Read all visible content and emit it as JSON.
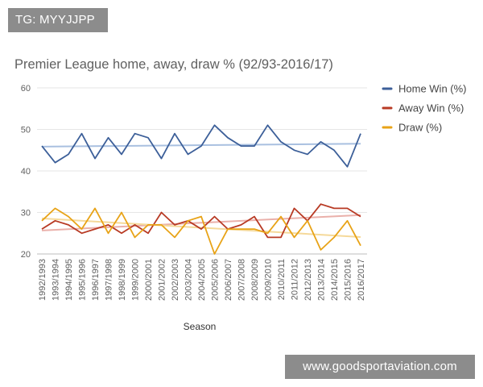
{
  "tag_badge": "TG: MYYJJPP",
  "watermark": "www.goodsportaviation.com",
  "chart_data": {
    "type": "line",
    "title": "Premier League home, away, draw % (92/93-2016/17)",
    "xlabel": "Season",
    "ylabel": "",
    "ylim": [
      20,
      60
    ],
    "yticks": [
      20,
      30,
      40,
      50,
      60
    ],
    "grid": true,
    "legend_position": "right",
    "categories": [
      "1992/1993",
      "1993/1994",
      "1994/1995",
      "1995/1996",
      "1996/1997",
      "1997/1998",
      "1998/1999",
      "1999/2000",
      "2000/2001",
      "2001/2002",
      "2002/2003",
      "2003/2004",
      "2004/2005",
      "2005/2006",
      "2006/2007",
      "2007/2008",
      "2008/2009",
      "2009/2010",
      "2010/2011",
      "2011/2012",
      "2012/2013",
      "2013/2014",
      "2014/2015",
      "2015/2016",
      "2016/2017"
    ],
    "series": [
      {
        "name": "Home Win (%)",
        "color": "#3c5f99",
        "trend_color": "#a9c0e0",
        "values": [
          46,
          42,
          44,
          49,
          43,
          48,
          44,
          49,
          48,
          43,
          49,
          44,
          46,
          51,
          48,
          46,
          46,
          51,
          47,
          45,
          44,
          47,
          45,
          41,
          49
        ]
      },
      {
        "name": "Away Win (%)",
        "color": "#b83a24",
        "trend_color": "#eab0aa",
        "values": [
          26,
          28,
          27,
          25,
          26,
          27,
          25,
          27,
          25,
          30,
          27,
          28,
          26,
          29,
          26,
          27,
          29,
          24,
          24,
          31,
          28,
          32,
          31,
          31,
          29
        ]
      },
      {
        "name": "Draw (%)",
        "color": "#e8a317",
        "trend_color": "#f5d99a",
        "values": [
          28,
          31,
          29,
          26,
          31,
          25,
          30,
          24,
          27,
          27,
          24,
          28,
          29,
          20,
          26,
          26,
          26,
          25,
          29,
          24,
          28,
          21,
          24,
          28,
          22
        ]
      }
    ]
  }
}
